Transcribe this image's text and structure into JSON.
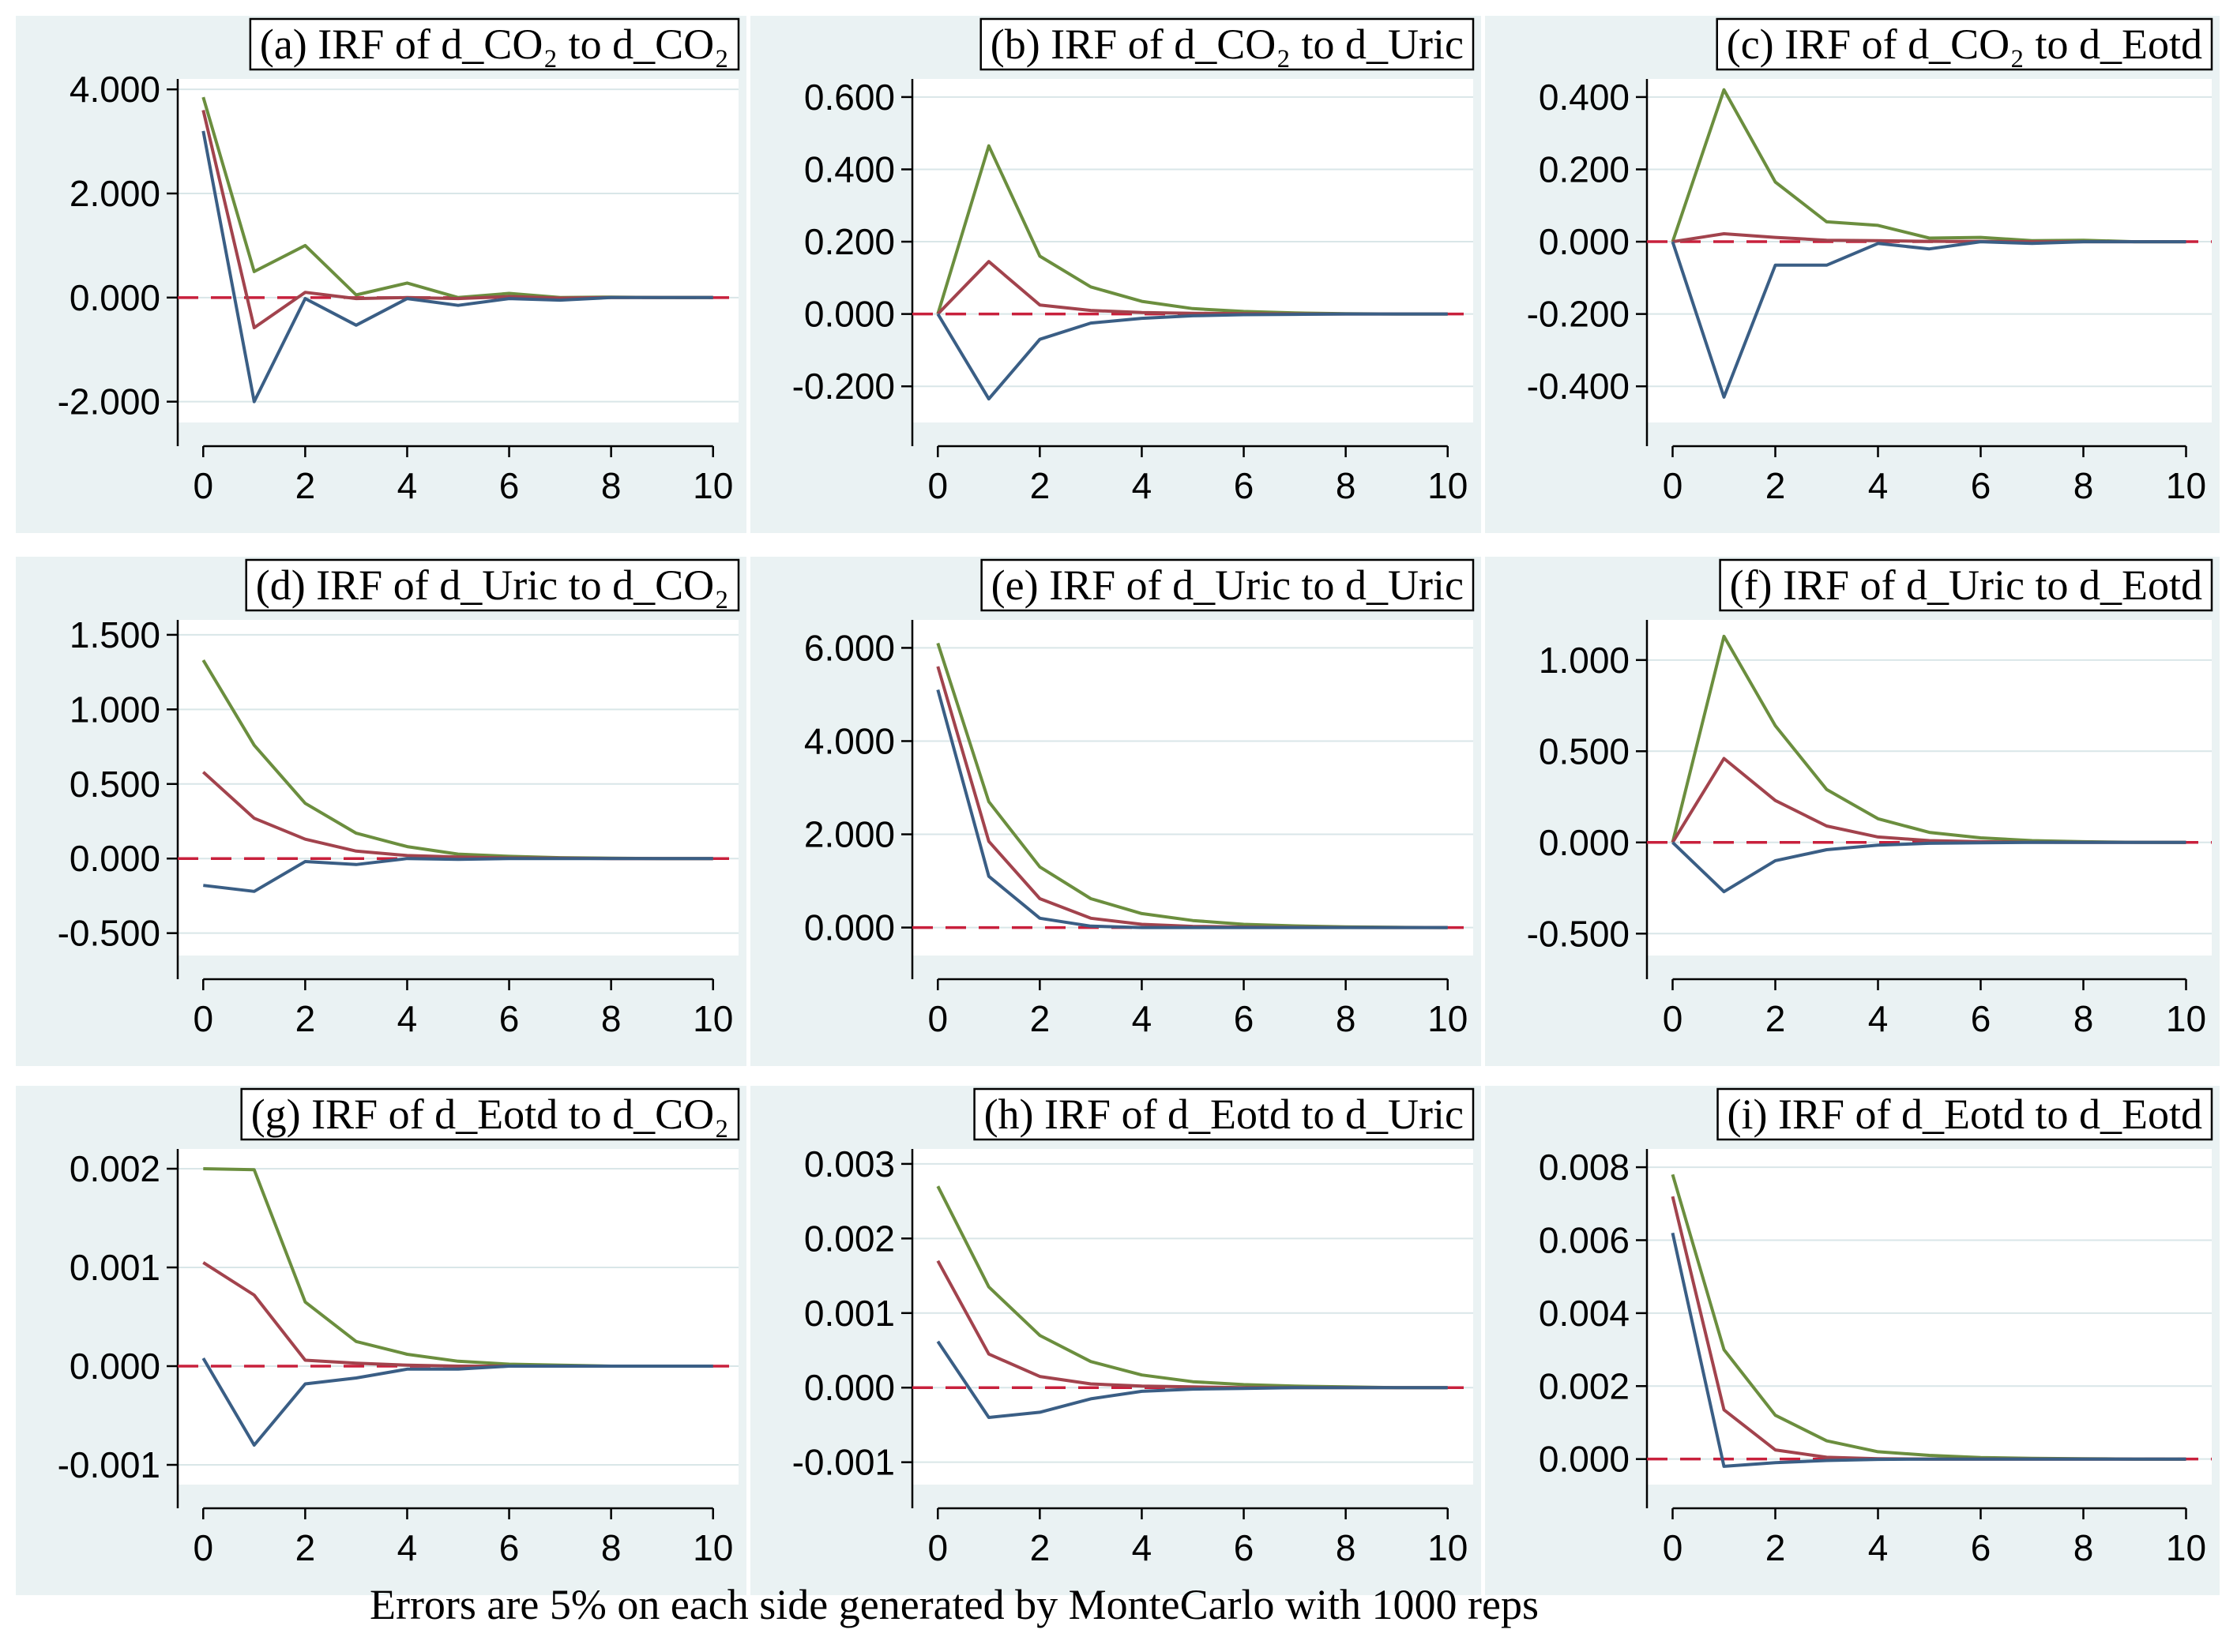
{
  "caption": "Errors are 5% on each side generated by MonteCarlo with 1000 reps",
  "colors": {
    "upper": "#6b8e3e",
    "irf": "#a2434d",
    "lower": "#3a5e85",
    "zero": "#c8203c",
    "panel_bg": "#eaf2f3",
    "grid": "#d9e6e8"
  },
  "chart_data": [
    {
      "type": "line",
      "title": "(a) IRF of d_CO₂ to d_CO₂",
      "x": [
        0,
        1,
        2,
        3,
        4,
        5,
        6,
        7,
        8,
        9,
        10
      ],
      "ylim": [
        -2.4,
        4.2
      ],
      "yticks": [
        4,
        2,
        0,
        -2
      ],
      "ytick_labels": [
        "4.000",
        "2.000",
        "0.000",
        "-2.000"
      ],
      "xticks": [
        0,
        2,
        4,
        6,
        8,
        10
      ],
      "xtick_labels": [
        "0",
        "2",
        "4",
        "6",
        "8",
        "10"
      ],
      "series": [
        {
          "name": "upper",
          "values": [
            3.85,
            0.5,
            1.0,
            0.05,
            0.28,
            0.0,
            0.08,
            0.0,
            0.01,
            0.0,
            0.0
          ]
        },
        {
          "name": "irf",
          "values": [
            3.6,
            -0.58,
            0.1,
            -0.02,
            0.0,
            -0.02,
            0.02,
            -0.01,
            0.0,
            0.0,
            0.0
          ]
        },
        {
          "name": "lower",
          "values": [
            3.2,
            -2.0,
            -0.02,
            -0.53,
            -0.02,
            -0.15,
            -0.02,
            -0.05,
            0.0,
            0.0,
            0.0
          ]
        }
      ]
    },
    {
      "type": "line",
      "title": "(b) IRF of d_CO₂ to d_Uric",
      "x": [
        0,
        1,
        2,
        3,
        4,
        5,
        6,
        7,
        8,
        9,
        10
      ],
      "ylim": [
        -0.3,
        0.65
      ],
      "yticks": [
        0.6,
        0.4,
        0.2,
        0,
        -0.2
      ],
      "ytick_labels": [
        "0.600",
        "0.400",
        "0.200",
        "0.000",
        "-0.200"
      ],
      "xticks": [
        0,
        2,
        4,
        6,
        8,
        10
      ],
      "xtick_labels": [
        "0",
        "2",
        "4",
        "6",
        "8",
        "10"
      ],
      "series": [
        {
          "name": "upper",
          "values": [
            0.0,
            0.465,
            0.16,
            0.075,
            0.035,
            0.015,
            0.007,
            0.003,
            0.001,
            0.0,
            0.0
          ]
        },
        {
          "name": "irf",
          "values": [
            0.0,
            0.145,
            0.025,
            0.01,
            0.004,
            0.002,
            0.001,
            0.0,
            0.0,
            0.0,
            0.0
          ]
        },
        {
          "name": "lower",
          "values": [
            0.0,
            -0.235,
            -0.07,
            -0.025,
            -0.012,
            -0.005,
            -0.002,
            -0.001,
            0.0,
            0.0,
            0.0
          ]
        }
      ]
    },
    {
      "type": "line",
      "title": "(c) IRF of d_CO₂ to d_Eotd",
      "x": [
        0,
        1,
        2,
        3,
        4,
        5,
        6,
        7,
        8,
        9,
        10
      ],
      "ylim": [
        -0.5,
        0.45
      ],
      "yticks": [
        0.4,
        0.2,
        0,
        -0.2,
        -0.4
      ],
      "ytick_labels": [
        "0.400",
        "0.200",
        "0.000",
        "-0.200",
        "-0.400"
      ],
      "xticks": [
        0,
        2,
        4,
        6,
        8,
        10
      ],
      "xtick_labels": [
        "0",
        "2",
        "4",
        "6",
        "8",
        "10"
      ],
      "series": [
        {
          "name": "upper",
          "values": [
            0.0,
            0.42,
            0.165,
            0.055,
            0.045,
            0.01,
            0.012,
            0.003,
            0.004,
            0.0,
            0.0
          ]
        },
        {
          "name": "irf",
          "values": [
            0.0,
            0.022,
            0.012,
            0.004,
            0.003,
            0.001,
            0.001,
            0.0,
            0.0,
            0.0,
            0.0
          ]
        },
        {
          "name": "lower",
          "values": [
            0.0,
            -0.43,
            -0.065,
            -0.065,
            -0.005,
            -0.02,
            0.0,
            -0.005,
            0.0,
            0.0,
            0.0
          ]
        }
      ]
    },
    {
      "type": "line",
      "title": "(d) IRF of d_Uric to d_CO₂",
      "x": [
        0,
        1,
        2,
        3,
        4,
        5,
        6,
        7,
        8,
        9,
        10
      ],
      "ylim": [
        -0.65,
        1.6
      ],
      "yticks": [
        1.5,
        1.0,
        0.5,
        0,
        -0.5
      ],
      "ytick_labels": [
        "1.500",
        "1.000",
        "0.500",
        "0.000",
        "-0.500"
      ],
      "xticks": [
        0,
        2,
        4,
        6,
        8,
        10
      ],
      "xtick_labels": [
        "0",
        "2",
        "4",
        "6",
        "8",
        "10"
      ],
      "series": [
        {
          "name": "upper",
          "values": [
            1.33,
            0.76,
            0.37,
            0.17,
            0.08,
            0.03,
            0.015,
            0.006,
            0.002,
            0.0,
            0.0
          ]
        },
        {
          "name": "irf",
          "values": [
            0.58,
            0.27,
            0.13,
            0.05,
            0.02,
            0.01,
            0.004,
            0.002,
            0.0,
            0.0,
            0.0
          ]
        },
        {
          "name": "lower",
          "values": [
            -0.18,
            -0.22,
            -0.02,
            -0.04,
            0.0,
            -0.005,
            0.0,
            0.0,
            0.0,
            0.0,
            0.0
          ]
        }
      ]
    },
    {
      "type": "line",
      "title": "(e) IRF of d_Uric to d_Uric",
      "x": [
        0,
        1,
        2,
        3,
        4,
        5,
        6,
        7,
        8,
        9,
        10
      ],
      "ylim": [
        -0.6,
        6.6
      ],
      "yticks": [
        6,
        4,
        2,
        0
      ],
      "ytick_labels": [
        "6.000",
        "4.000",
        "2.000",
        "0.000"
      ],
      "xticks": [
        0,
        2,
        4,
        6,
        8,
        10
      ],
      "xtick_labels": [
        "0",
        "2",
        "4",
        "6",
        "8",
        "10"
      ],
      "series": [
        {
          "name": "upper",
          "values": [
            6.1,
            2.7,
            1.3,
            0.62,
            0.3,
            0.15,
            0.07,
            0.035,
            0.015,
            0.005,
            0.0
          ]
        },
        {
          "name": "irf",
          "values": [
            5.6,
            1.85,
            0.62,
            0.2,
            0.07,
            0.025,
            0.01,
            0.003,
            0.001,
            0.0,
            0.0
          ]
        },
        {
          "name": "lower",
          "values": [
            5.1,
            1.1,
            0.2,
            0.03,
            0.0,
            0.0,
            0.0,
            0.0,
            0.0,
            0.0,
            0.0
          ]
        }
      ]
    },
    {
      "type": "line",
      "title": "(f) IRF of d_Uric to d_Eotd",
      "x": [
        0,
        1,
        2,
        3,
        4,
        5,
        6,
        7,
        8,
        9,
        10
      ],
      "ylim": [
        -0.62,
        1.22
      ],
      "yticks": [
        1.0,
        0.5,
        0,
        -0.5
      ],
      "ytick_labels": [
        "1.000",
        "0.500",
        "0.000",
        "-0.500"
      ],
      "xticks": [
        0,
        2,
        4,
        6,
        8,
        10
      ],
      "xtick_labels": [
        "0",
        "2",
        "4",
        "6",
        "8",
        "10"
      ],
      "series": [
        {
          "name": "upper",
          "values": [
            0.0,
            1.13,
            0.64,
            0.29,
            0.13,
            0.055,
            0.025,
            0.01,
            0.004,
            0.001,
            0.0
          ]
        },
        {
          "name": "irf",
          "values": [
            0.0,
            0.46,
            0.23,
            0.09,
            0.03,
            0.01,
            0.004,
            0.001,
            0.0,
            0.0,
            0.0
          ]
        },
        {
          "name": "lower",
          "values": [
            0.0,
            -0.27,
            -0.1,
            -0.04,
            -0.015,
            -0.005,
            -0.002,
            0.0,
            0.0,
            0.0,
            0.0
          ]
        }
      ]
    },
    {
      "type": "line",
      "title": "(g) IRF of d_Eotd to d_CO₂",
      "x": [
        0,
        1,
        2,
        3,
        4,
        5,
        6,
        7,
        8,
        9,
        10
      ],
      "ylim": [
        -0.0012,
        0.0022
      ],
      "yticks": [
        0.002,
        0.001,
        0,
        -0.001
      ],
      "ytick_labels": [
        "0.002",
        "0.001",
        "0.000",
        "-0.001"
      ],
      "xticks": [
        0,
        2,
        4,
        6,
        8,
        10
      ],
      "xtick_labels": [
        "0",
        "2",
        "4",
        "6",
        "8",
        "10"
      ],
      "series": [
        {
          "name": "upper",
          "values": [
            0.002,
            0.00199,
            0.00065,
            0.00025,
            0.00012,
            5e-05,
            2e-05,
            1e-05,
            0.0,
            0.0,
            0.0
          ]
        },
        {
          "name": "irf",
          "values": [
            0.00105,
            0.00072,
            6e-05,
            3e-05,
            1e-05,
            0.0,
            0.0,
            0.0,
            0.0,
            0.0,
            0.0
          ]
        },
        {
          "name": "lower",
          "values": [
            8e-05,
            -0.0008,
            -0.00018,
            -0.00012,
            -3e-05,
            -3e-05,
            0.0,
            0.0,
            0.0,
            0.0,
            0.0
          ]
        }
      ]
    },
    {
      "type": "line",
      "title": "(h) IRF of d_Eotd to d_Uric",
      "x": [
        0,
        1,
        2,
        3,
        4,
        5,
        6,
        7,
        8,
        9,
        10
      ],
      "ylim": [
        -0.0013,
        0.0032
      ],
      "yticks": [
        0.003,
        0.002,
        0.001,
        0,
        -0.001
      ],
      "ytick_labels": [
        "0.003",
        "0.002",
        "0.001",
        "0.000",
        "-0.001"
      ],
      "xticks": [
        0,
        2,
        4,
        6,
        8,
        10
      ],
      "xtick_labels": [
        "0",
        "2",
        "4",
        "6",
        "8",
        "10"
      ],
      "series": [
        {
          "name": "upper",
          "values": [
            0.0027,
            0.00135,
            0.0007,
            0.00035,
            0.00017,
            8e-05,
            4e-05,
            2e-05,
            1e-05,
            0.0,
            0.0
          ]
        },
        {
          "name": "irf",
          "values": [
            0.0017,
            0.00045,
            0.00015,
            5e-05,
            2e-05,
            1e-05,
            0.0,
            0.0,
            0.0,
            0.0,
            0.0
          ]
        },
        {
          "name": "lower",
          "values": [
            0.00062,
            -0.0004,
            -0.00033,
            -0.00015,
            -5e-05,
            -2e-05,
            -1e-05,
            0.0,
            0.0,
            0.0,
            0.0
          ]
        }
      ]
    },
    {
      "type": "line",
      "title": "(i) IRF of d_Eotd to d_Eotd",
      "x": [
        0,
        1,
        2,
        3,
        4,
        5,
        6,
        7,
        8,
        9,
        10
      ],
      "ylim": [
        -0.0007,
        0.0085
      ],
      "yticks": [
        0.008,
        0.006,
        0.004,
        0.002,
        0
      ],
      "ytick_labels": [
        "0.008",
        "0.006",
        "0.004",
        "0.002",
        "0.000"
      ],
      "xticks": [
        0,
        2,
        4,
        6,
        8,
        10
      ],
      "xtick_labels": [
        "0",
        "2",
        "4",
        "6",
        "8",
        "10"
      ],
      "series": [
        {
          "name": "upper",
          "values": [
            0.0078,
            0.003,
            0.0012,
            0.0005,
            0.0002,
            0.0001,
            4e-05,
            2e-05,
            1e-05,
            0.0,
            0.0
          ]
        },
        {
          "name": "irf",
          "values": [
            0.0072,
            0.00135,
            0.00025,
            5e-05,
            1e-05,
            0.0,
            0.0,
            0.0,
            0.0,
            0.0,
            0.0
          ]
        },
        {
          "name": "lower",
          "values": [
            0.0062,
            -0.0002,
            -0.0001,
            -4e-05,
            -1e-05,
            0.0,
            0.0,
            0.0,
            0.0,
            0.0,
            0.0
          ]
        }
      ]
    }
  ]
}
